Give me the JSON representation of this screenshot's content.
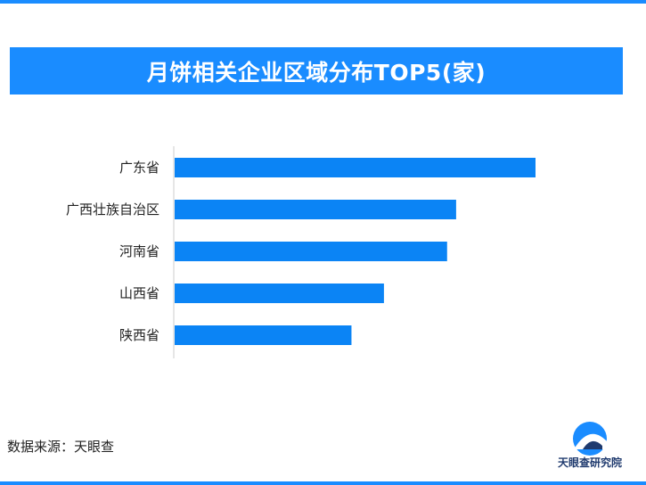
{
  "title": "月饼相关企业区域分布TOP5(家)",
  "source": "数据来源：天眼查",
  "logo_text": "天眼查研究院",
  "colors": {
    "accent": "#1a8cff",
    "bar": "#0b84f5",
    "axis": "#cccccc",
    "logo_dark": "#1f3a6e"
  },
  "chart_data": {
    "type": "bar",
    "orientation": "horizontal",
    "title": "月饼相关企业区域分布TOP5(家)",
    "categories": [
      "广东省",
      "广西壮族自治区",
      "河南省",
      "山西省",
      "陕西省"
    ],
    "values": [
      100,
      78,
      75.5,
      58,
      49
    ],
    "xlim": [
      0,
      100
    ],
    "xlabel": "",
    "ylabel": "",
    "grid": false,
    "legend": "none",
    "value_labels": false
  }
}
